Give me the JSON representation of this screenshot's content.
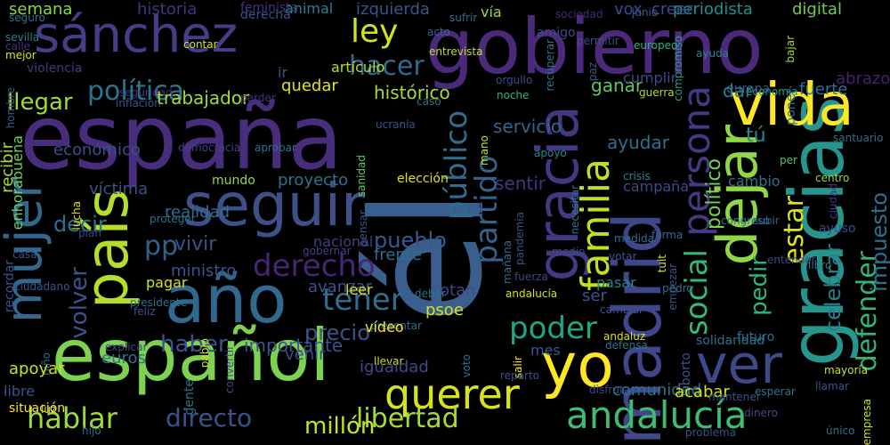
{
  "words": [
    {
      "text": "españa",
      "color": "#472d7b"
    },
    {
      "text": "gobierno",
      "color": "#4b2a7c"
    },
    {
      "text": "él",
      "color": "#3b5f8c"
    },
    {
      "text": "sánchez",
      "color": "#433e85"
    },
    {
      "text": "seguir",
      "color": "#3d508a"
    },
    {
      "text": "gracias",
      "color": "#26968c"
    },
    {
      "text": "español",
      "color": "#7dd250"
    },
    {
      "text": "madrid",
      "color": "#3f4788"
    },
    {
      "text": "gracia",
      "color": "#453882"
    },
    {
      "text": "año",
      "color": "#31688e"
    },
    {
      "text": "vida",
      "color": "#fde725"
    },
    {
      "text": "país",
      "color": "#b5de2b"
    },
    {
      "text": "yo",
      "color": "#fde725"
    },
    {
      "text": "ver",
      "color": "#3e4989"
    },
    {
      "text": "dejar",
      "color": "#8fd744"
    },
    {
      "text": "mujer",
      "color": "#31688e"
    },
    {
      "text": "querer",
      "color": "#d8e219"
    },
    {
      "text": "andalucía",
      "color": "#3fbc73"
    },
    {
      "text": "familia",
      "color": "#c2df23"
    },
    {
      "text": "persona",
      "color": "#443983"
    },
    {
      "text": "derecho",
      "color": "#482475"
    },
    {
      "text": "público",
      "color": "#2f6c8e"
    },
    {
      "text": "partido",
      "color": "#33638d"
    },
    {
      "text": "tener",
      "color": "#2e6f8e"
    },
    {
      "text": "hablar",
      "color": "#9fda3a"
    },
    {
      "text": "libertad",
      "color": "#a5db36"
    },
    {
      "text": "directo",
      "color": "#3b528b"
    },
    {
      "text": "millón",
      "color": "#cae11f"
    },
    {
      "text": "hacer",
      "color": "#31688e"
    },
    {
      "text": "política",
      "color": "#2b758e"
    },
    {
      "text": "ley",
      "color": "#d2e21b"
    },
    {
      "text": "social",
      "color": "#35b779"
    },
    {
      "text": "poder",
      "color": "#21a685"
    },
    {
      "text": "haber",
      "color": "#3b528b"
    },
    {
      "text": "defender",
      "color": "#31b57b"
    },
    {
      "text": "estar",
      "color": "#dde318"
    },
    {
      "text": "pedir",
      "color": "#2eb37c"
    },
    {
      "text": "volver",
      "color": "#3a548c"
    },
    {
      "text": "precio",
      "color": "#3b528b"
    },
    {
      "text": "pp",
      "color": "#355f8d"
    },
    {
      "text": "decir",
      "color": "#2c738e"
    },
    {
      "text": "pueblo",
      "color": "#38598c"
    },
    {
      "text": "llegar",
      "color": "#9fda3a"
    },
    {
      "text": "vivir",
      "color": "#3b528b"
    },
    {
      "text": "celebrar",
      "color": "#277f8e"
    },
    {
      "text": "impuesto",
      "color": "#2c728e"
    },
    {
      "text": "político",
      "color": "#75d054"
    },
    {
      "text": "tú",
      "color": "#238a8d"
    },
    {
      "text": "historia",
      "color": "#46337e"
    },
    {
      "text": "semana",
      "color": "#8bd646"
    },
    {
      "text": "izquierda",
      "color": "#39568c"
    },
    {
      "text": "periodista",
      "color": "#21918c"
    },
    {
      "text": "digital",
      "color": "#6ccd5a"
    },
    {
      "text": "creer",
      "color": "#3e4a89"
    },
    {
      "text": "vox",
      "color": "#3e4989"
    },
    {
      "text": "vía",
      "color": "#95d840"
    },
    {
      "text": "animal",
      "color": "#24868e"
    },
    {
      "text": "derecha",
      "color": "#3b528b"
    },
    {
      "text": "feminista",
      "color": "#46327e"
    },
    {
      "text": "seguro",
      "color": "#2c718e"
    },
    {
      "text": "sufrir",
      "color": "#2d708e"
    },
    {
      "text": "amigo",
      "color": "#3e4a89"
    },
    {
      "text": "sociedad",
      "color": "#482878"
    },
    {
      "text": "junio",
      "color": "#355f8d"
    },
    {
      "text": "acto",
      "color": "#31688e"
    },
    {
      "text": "sevilla",
      "color": "#26828e"
    },
    {
      "text": "calle",
      "color": "#46327e"
    },
    {
      "text": "mejor",
      "color": "#d8e219"
    },
    {
      "text": "contar",
      "color": "#d8e219"
    },
    {
      "text": "entrevista",
      "color": "#bddf26"
    },
    {
      "text": "recuperar",
      "color": "#2a778e"
    },
    {
      "text": "paz",
      "color": "#38598c"
    },
    {
      "text": "permitir",
      "color": "#3d4e8a"
    },
    {
      "text": "europeo",
      "color": "#31b57b"
    },
    {
      "text": "compromiso",
      "color": "#1fa188"
    },
    {
      "text": "bajar",
      "color": "#a0da39"
    },
    {
      "text": "europa",
      "color": "#3b528b"
    },
    {
      "text": "ayuda",
      "color": "#24868e"
    },
    {
      "text": "economía",
      "color": "#1f9e89"
    },
    {
      "text": "violencia",
      "color": "#443983"
    },
    {
      "text": "ir",
      "color": "#3b528b"
    },
    {
      "text": "artículo",
      "color": "#b5de2b"
    },
    {
      "text": "orgullo",
      "color": "#3d4d8a"
    },
    {
      "text": "hombre",
      "color": "#355e8d"
    },
    {
      "text": "seguridad",
      "color": "#46337e"
    },
    {
      "text": "inflación",
      "color": "#3a548c"
    },
    {
      "text": "trabajador",
      "color": "#a5db36"
    },
    {
      "text": "perder",
      "color": "#472f7d"
    },
    {
      "text": "quedar",
      "color": "#dde318"
    },
    {
      "text": "histórico",
      "color": "#a8db34"
    },
    {
      "text": "caso",
      "color": "#2d708e"
    },
    {
      "text": "noche",
      "color": "#2db27d"
    },
    {
      "text": "ganar",
      "color": "#5ec962"
    },
    {
      "text": "cumplir",
      "color": "#3e4989"
    },
    {
      "text": "guerra",
      "color": "#b0dd2f"
    },
    {
      "text": "dar",
      "color": "#26828e"
    },
    {
      "text": "fuerte",
      "color": "#2c718e"
    },
    {
      "text": "poner",
      "color": "#2a768e"
    },
    {
      "text": "abrazo",
      "color": "#482071"
    },
    {
      "text": "servicio",
      "color": "#32658e"
    },
    {
      "text": "ucrania",
      "color": "#3b528b"
    },
    {
      "text": "aprobar",
      "color": "#2c728e"
    },
    {
      "text": "sanidad",
      "color": "#5ec962"
    },
    {
      "text": "mano",
      "color": "#cae11f"
    },
    {
      "text": "democracia",
      "color": "#414487"
    },
    {
      "text": "económico",
      "color": "#3d4e8a"
    },
    {
      "text": "recibir",
      "color": "#a5db36"
    },
    {
      "text": "enhorabuena",
      "color": "#6ece58"
    },
    {
      "text": "ayudar",
      "color": "#2d708e"
    },
    {
      "text": "apoyo",
      "color": "#23888e"
    },
    {
      "text": "per",
      "color": "#52c569"
    },
    {
      "text": "santuario",
      "color": "#2f6c8e"
    },
    {
      "text": "víctima",
      "color": "#3b528b"
    },
    {
      "text": "mundo",
      "color": "#95d840"
    },
    {
      "text": "proyecto",
      "color": "#2c728e"
    },
    {
      "text": "elección",
      "color": "#dde318"
    },
    {
      "text": "sentir",
      "color": "#46337e"
    },
    {
      "text": "necesitar",
      "color": "#2a788e"
    },
    {
      "text": "campaña",
      "color": "#3e4989"
    },
    {
      "text": "crisis",
      "color": "#238a8d"
    },
    {
      "text": "cambio",
      "color": "#2c738e"
    },
    {
      "text": "centro",
      "color": "#95d840"
    },
    {
      "text": "ciudad",
      "color": "#453581"
    },
    {
      "text": "realidad",
      "color": "#2e6e8e"
    },
    {
      "text": "lucha",
      "color": "#dde318"
    },
    {
      "text": "proteger",
      "color": "#2c728e"
    },
    {
      "text": "pensar",
      "color": "#39568c"
    },
    {
      "text": "pandemia",
      "color": "#3b528b"
    },
    {
      "text": "congreso",
      "color": "#2d708e"
    },
    {
      "text": "subir",
      "color": "#365c8d"
    },
    {
      "text": "ayuso",
      "color": "#3e4989"
    },
    {
      "text": "plan",
      "color": "#3f4788"
    },
    {
      "text": "medida",
      "color": "#2c718e"
    },
    {
      "text": "forma",
      "color": "#31688e"
    },
    {
      "text": "casa",
      "color": "#3b528b"
    },
    {
      "text": "gobernar",
      "color": "#414487"
    },
    {
      "text": "nacional",
      "color": "#433e85"
    },
    {
      "text": "frente",
      "color": "#2e6e8e"
    },
    {
      "text": "medio",
      "color": "#3e4a89"
    },
    {
      "text": "votar",
      "color": "#3a548c"
    },
    {
      "text": "entender",
      "color": "#3f4788"
    },
    {
      "text": "libro",
      "color": "#2a788e"
    },
    {
      "text": "ministro",
      "color": "#3b528b"
    },
    {
      "text": "pagar",
      "color": "#d2e21b"
    },
    {
      "text": "mañana",
      "color": "#2c728e"
    },
    {
      "text": "fuerza",
      "color": "#3f4788"
    },
    {
      "text": "tuit",
      "color": "#cae11f"
    },
    {
      "text": "empezar",
      "color": "#3b528b"
    },
    {
      "text": "ciudadano",
      "color": "#39568c"
    },
    {
      "text": "avanzar",
      "color": "#3b528b"
    },
    {
      "text": "leer",
      "color": "#dde318"
    },
    {
      "text": "deber",
      "color": "#2c738e"
    },
    {
      "text": "otan",
      "color": "#3e4989"
    },
    {
      "text": "pasar",
      "color": "#24878e"
    },
    {
      "text": "pedro",
      "color": "#2c728e"
    },
    {
      "text": "recordar",
      "color": "#3b528b"
    },
    {
      "text": "andalucía",
      "color": "#d2e21b"
    },
    {
      "text": "ser",
      "color": "#3b528b"
    },
    {
      "text": "psoe",
      "color": "#d2e21b"
    },
    {
      "text": "presidente",
      "color": "#2c728e"
    },
    {
      "text": "feliz",
      "color": "#3b528b"
    },
    {
      "text": "pablo",
      "color": "#d2e21b"
    },
    {
      "text": "convertir",
      "color": "#3e4989"
    },
    {
      "text": "cambiar",
      "color": "#3b528b"
    },
    {
      "text": "presentar",
      "color": "#2c728e"
    },
    {
      "text": "explicar",
      "color": "#3e4989"
    },
    {
      "text": "niño",
      "color": "#2c728e"
    },
    {
      "text": "importante",
      "color": "#3b528b"
    },
    {
      "text": "vídeo",
      "color": "#fde725"
    },
    {
      "text": "mes",
      "color": "#365c8d"
    },
    {
      "text": "andaluz",
      "color": "#dde318"
    },
    {
      "text": "defensa",
      "color": "#2c728e"
    },
    {
      "text": "aborto",
      "color": "#3b528b"
    },
    {
      "text": "solidaridad",
      "color": "#2c728e"
    },
    {
      "text": "futuro",
      "color": "#2c728e"
    },
    {
      "text": "apoyar",
      "color": "#cae11f"
    },
    {
      "text": "euros",
      "color": "#2c728e"
    },
    {
      "text": "venir",
      "color": "#3e4989"
    },
    {
      "text": "llevar",
      "color": "#d2e21b"
    },
    {
      "text": "voto",
      "color": "#2c728e"
    },
    {
      "text": "igualdad",
      "color": "#3e4989"
    },
    {
      "text": "salir",
      "color": "#fde725"
    },
    {
      "text": "reparto",
      "color": "#3b528b"
    },
    {
      "text": "mayoría",
      "color": "#cae11f"
    },
    {
      "text": "libre",
      "color": "#3b528b"
    },
    {
      "text": "gente",
      "color": "#2c728e"
    },
    {
      "text": "disfrutar",
      "color": "#3e4989"
    },
    {
      "text": "comunidad",
      "color": "#2c728e"
    },
    {
      "text": "acabar",
      "color": "#d2e21b"
    },
    {
      "text": "esperar",
      "color": "#2c728e"
    },
    {
      "text": "llamar",
      "color": "#3b528b"
    },
    {
      "text": "situación",
      "color": "#fde725"
    },
    {
      "text": "luz",
      "color": "#d2e21b"
    },
    {
      "text": "hijo",
      "color": "#2c728e"
    },
    {
      "text": "mantener",
      "color": "#3b528b"
    },
    {
      "text": "dinero",
      "color": "#3e4989"
    },
    {
      "text": "único",
      "color": "#2c728e"
    },
    {
      "text": "empresa",
      "color": "#d2e21b"
    },
    {
      "text": "problema",
      "color": "#3b528b"
    }
  ]
}
